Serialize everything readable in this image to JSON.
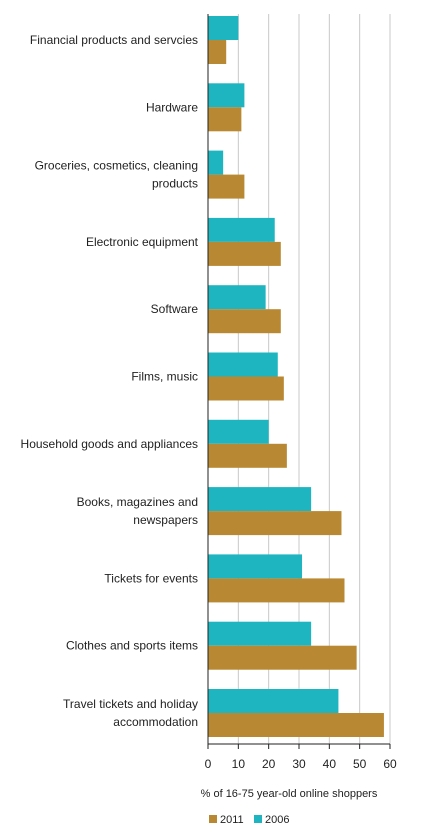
{
  "chart_data": {
    "type": "bar",
    "orientation": "horizontal",
    "categories": [
      "Financial products and servcies",
      "Hardware",
      "Groceries, cosmetics, cleaning products",
      "Electronic equipment",
      "Software",
      "Films, music",
      "Household goods and appliances",
      "Books, magazines and newspapers",
      "Tickets for events",
      "Clothes and sports items",
      "Travel tickets and holiday accommodation"
    ],
    "category_lines": [
      [
        "Financial products and servcies"
      ],
      [
        "Hardware"
      ],
      [
        "Groceries, cosmetics, cleaning",
        "products"
      ],
      [
        "Electronic equipment"
      ],
      [
        "Software"
      ],
      [
        "Films, music"
      ],
      [
        "Household goods and appliances"
      ],
      [
        "Books, magazines and",
        "newspapers"
      ],
      [
        "Tickets for events"
      ],
      [
        "Clothes and sports items"
      ],
      [
        "Travel tickets and holiday",
        "accommodation"
      ]
    ],
    "series": [
      {
        "name": "2006",
        "color": "#1fb5c0",
        "values": [
          10,
          12,
          5,
          22,
          19,
          23,
          20,
          34,
          31,
          34,
          43
        ]
      },
      {
        "name": "2011",
        "color": "#b98832",
        "values": [
          6,
          11,
          12,
          24,
          24,
          25,
          26,
          44,
          45,
          49,
          58
        ]
      }
    ],
    "xlabel": "% of 16-75 year-old online shoppers",
    "ylabel": "",
    "xlim": [
      0,
      60
    ],
    "xticks": [
      0,
      10,
      20,
      30,
      40,
      50,
      60
    ],
    "grid": true,
    "legend": {
      "position": "bottom",
      "items": [
        {
          "name": "2011",
          "color": "#b98832"
        },
        {
          "name": "2006",
          "color": "#1fb5c0"
        }
      ]
    }
  }
}
